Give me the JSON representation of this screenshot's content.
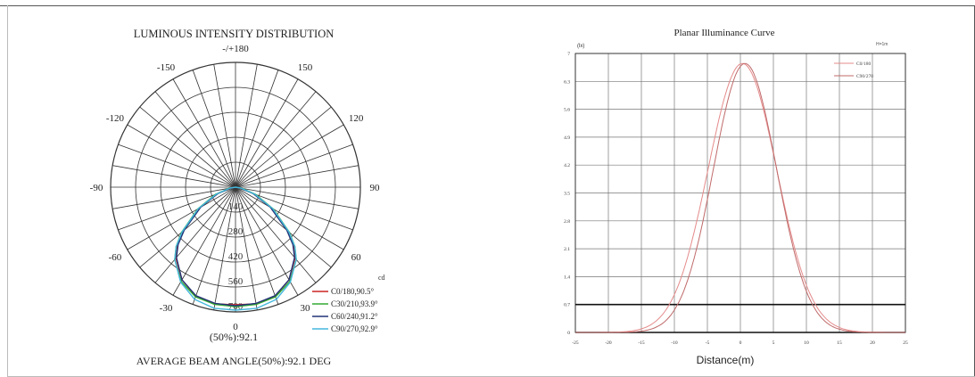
{
  "colors": {
    "grid": "#333333",
    "c0": "#cc2222",
    "c30": "#33aa33",
    "c60": "#223377",
    "c90": "#44b7dd",
    "orange": "#e39a2a",
    "planar_c0": "#e58a8a",
    "planar_c90": "#c06a6a",
    "threshold": "#111111"
  },
  "chart_data": [
    {
      "type": "polar",
      "title": "LUMINOUS INTENSITY DISTRIBUTION",
      "angle_labels": [
        "-/+180",
        "150",
        "120",
        "90",
        "60",
        "30",
        "0",
        "-30",
        "-60",
        "-90",
        "-120",
        "-150"
      ],
      "radial_labels": [
        "140",
        "280",
        "420",
        "560",
        "700"
      ],
      "unit": "cd",
      "rmax": 700,
      "beam_label": "(50%):92.1",
      "footer": "AVERAGE BEAM ANGLE(50%):92.1 DEG",
      "series": [
        {
          "name": "C0/180,90.5°",
          "color_key": "c0",
          "angles": [
            0,
            10,
            20,
            30,
            40,
            45,
            50,
            60,
            70,
            80,
            90
          ],
          "values": [
            660,
            665,
            650,
            600,
            520,
            460,
            380,
            230,
            110,
            30,
            0
          ]
        },
        {
          "name": "C30/210,93.9°",
          "color_key": "c30",
          "angles": [
            0,
            10,
            20,
            30,
            40,
            45,
            50,
            60,
            70,
            80,
            90
          ],
          "values": [
            670,
            668,
            655,
            610,
            530,
            470,
            395,
            245,
            120,
            35,
            0
          ]
        },
        {
          "name": "C60/240,91.2°",
          "color_key": "c60",
          "angles": [
            0,
            10,
            20,
            30,
            40,
            45,
            50,
            60,
            70,
            80,
            90
          ],
          "values": [
            665,
            662,
            648,
            600,
            515,
            455,
            375,
            225,
            105,
            28,
            0
          ]
        },
        {
          "name": "C90/270,92.9°",
          "color_key": "c90",
          "angles": [
            0,
            10,
            20,
            30,
            40,
            45,
            50,
            60,
            70,
            80,
            90
          ],
          "values": [
            690,
            690,
            670,
            615,
            530,
            470,
            390,
            240,
            115,
            32,
            0
          ]
        }
      ]
    },
    {
      "type": "line",
      "title": "Planar Illuminance Curve",
      "xlabel": "Distance(m)",
      "ylabel": "(lx)",
      "corner_note": "H=1m",
      "xlim": [
        -25,
        25
      ],
      "ylim": [
        0,
        7
      ],
      "x_ticks": [
        "-25",
        "-20",
        "-15",
        "-10",
        "-5",
        "0",
        "5",
        "10",
        "15",
        "20",
        "25"
      ],
      "y_ticks": [
        "0",
        "0.7",
        "1.4",
        "2.1",
        "2.8",
        "3.5",
        "4.2",
        "4.9",
        "5.6",
        "6.3",
        "7"
      ],
      "threshold_y": 0.7,
      "series": [
        {
          "name": "C0/180",
          "color_key": "planar_c0",
          "center": 0.3,
          "peak": 6.75,
          "width": 5.2
        },
        {
          "name": "C90/270",
          "color_key": "planar_c90",
          "center": 0.7,
          "peak": 6.75,
          "width": 4.8
        }
      ]
    }
  ]
}
